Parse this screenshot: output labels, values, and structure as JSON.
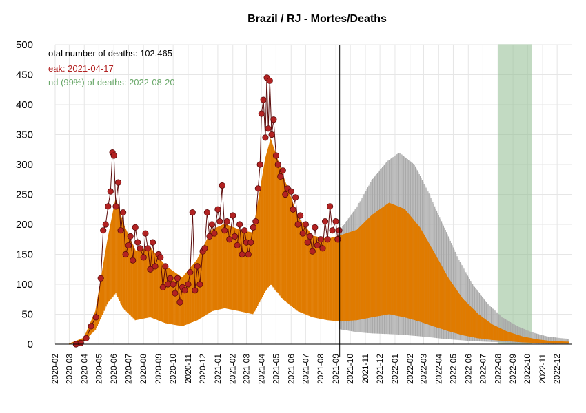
{
  "chart_data": {
    "type": "line",
    "title": "Brazil / RJ - Mortes/Deaths",
    "xlabel": "",
    "ylabel": "",
    "ylim": [
      0,
      500
    ],
    "y_ticks": [
      0,
      50,
      100,
      150,
      200,
      250,
      300,
      350,
      400,
      450,
      500
    ],
    "x_ticks": [
      "2020-02",
      "2020-03",
      "2020-04",
      "2020-05",
      "2020-06",
      "2020-07",
      "2020-08",
      "2020-09",
      "2020-10",
      "2020-11",
      "2020-12",
      "2021-01",
      "2021-02",
      "2021-03",
      "2021-04",
      "2021-05",
      "2021-06",
      "2021-07",
      "2021-08",
      "2021-09",
      "2021-10",
      "2021-11",
      "2021-12",
      "2022-01",
      "2022-02",
      "2022-03",
      "2022-04",
      "2022-05",
      "2022-06",
      "2022-07",
      "2022-08",
      "2022-09",
      "2022-10",
      "2022-11",
      "2022-12"
    ],
    "grid": true,
    "annotations": {
      "total": "otal number of deaths: 102.465",
      "peak": "eak: 2021-04-17",
      "end": "nd (99%) of deaths: 2022-08-20"
    },
    "current_date": "2021-09-09",
    "end_window": [
      "2022-08-01",
      "2022-10-10"
    ],
    "series": [
      {
        "role": "observed_daily_deaths",
        "points": [
          [
            "2020-03-15",
            0
          ],
          [
            "2020-03-25",
            2
          ],
          [
            "2020-04-05",
            10
          ],
          [
            "2020-04-15",
            30
          ],
          [
            "2020-04-25",
            45
          ],
          [
            "2020-05-05",
            110
          ],
          [
            "2020-05-10",
            190
          ],
          [
            "2020-05-15",
            200
          ],
          [
            "2020-05-20",
            230
          ],
          [
            "2020-05-25",
            255
          ],
          [
            "2020-05-29",
            320
          ],
          [
            "2020-06-01",
            315
          ],
          [
            "2020-06-05",
            230
          ],
          [
            "2020-06-10",
            270
          ],
          [
            "2020-06-15",
            190
          ],
          [
            "2020-06-20",
            220
          ],
          [
            "2020-06-25",
            150
          ],
          [
            "2020-07-01",
            165
          ],
          [
            "2020-07-05",
            180
          ],
          [
            "2020-07-10",
            140
          ],
          [
            "2020-07-15",
            195
          ],
          [
            "2020-07-20",
            170
          ],
          [
            "2020-07-25",
            160
          ],
          [
            "2020-08-01",
            145
          ],
          [
            "2020-08-05",
            185
          ],
          [
            "2020-08-10",
            160
          ],
          [
            "2020-08-15",
            125
          ],
          [
            "2020-08-20",
            170
          ],
          [
            "2020-08-25",
            130
          ],
          [
            "2020-09-01",
            150
          ],
          [
            "2020-09-05",
            145
          ],
          [
            "2020-09-10",
            95
          ],
          [
            "2020-09-15",
            130
          ],
          [
            "2020-09-20",
            100
          ],
          [
            "2020-09-25",
            110
          ],
          [
            "2020-10-01",
            100
          ],
          [
            "2020-10-05",
            85
          ],
          [
            "2020-10-10",
            110
          ],
          [
            "2020-10-15",
            70
          ],
          [
            "2020-10-20",
            95
          ],
          [
            "2020-10-25",
            90
          ],
          [
            "2020-11-01",
            100
          ],
          [
            "2020-11-05",
            120
          ],
          [
            "2020-11-10",
            220
          ],
          [
            "2020-11-15",
            90
          ],
          [
            "2020-11-20",
            130
          ],
          [
            "2020-11-25",
            100
          ],
          [
            "2020-12-01",
            155
          ],
          [
            "2020-12-05",
            160
          ],
          [
            "2020-12-10",
            220
          ],
          [
            "2020-12-15",
            180
          ],
          [
            "2020-12-20",
            200
          ],
          [
            "2020-12-25",
            185
          ],
          [
            "2021-01-01",
            225
          ],
          [
            "2021-01-05",
            205
          ],
          [
            "2021-01-10",
            265
          ],
          [
            "2021-01-15",
            190
          ],
          [
            "2021-01-20",
            205
          ],
          [
            "2021-01-25",
            175
          ],
          [
            "2021-02-01",
            215
          ],
          [
            "2021-02-05",
            180
          ],
          [
            "2021-02-10",
            165
          ],
          [
            "2021-02-15",
            200
          ],
          [
            "2021-02-20",
            150
          ],
          [
            "2021-02-25",
            190
          ],
          [
            "2021-03-01",
            170
          ],
          [
            "2021-03-05",
            150
          ],
          [
            "2021-03-10",
            170
          ],
          [
            "2021-03-15",
            195
          ],
          [
            "2021-03-20",
            205
          ],
          [
            "2021-03-25",
            260
          ],
          [
            "2021-03-29",
            300
          ],
          [
            "2021-04-01",
            385
          ],
          [
            "2021-04-05",
            408
          ],
          [
            "2021-04-09",
            345
          ],
          [
            "2021-04-12",
            445
          ],
          [
            "2021-04-15",
            360
          ],
          [
            "2021-04-18",
            440
          ],
          [
            "2021-04-22",
            350
          ],
          [
            "2021-04-26",
            375
          ],
          [
            "2021-05-01",
            315
          ],
          [
            "2021-05-05",
            300
          ],
          [
            "2021-05-10",
            280
          ],
          [
            "2021-05-15",
            290
          ],
          [
            "2021-05-20",
            250
          ],
          [
            "2021-05-25",
            260
          ],
          [
            "2021-06-01",
            255
          ],
          [
            "2021-06-05",
            225
          ],
          [
            "2021-06-10",
            245
          ],
          [
            "2021-06-15",
            200
          ],
          [
            "2021-06-20",
            215
          ],
          [
            "2021-06-25",
            185
          ],
          [
            "2021-07-01",
            200
          ],
          [
            "2021-07-05",
            170
          ],
          [
            "2021-07-10",
            180
          ],
          [
            "2021-07-15",
            155
          ],
          [
            "2021-07-20",
            195
          ],
          [
            "2021-07-25",
            165
          ],
          [
            "2021-08-01",
            175
          ],
          [
            "2021-08-05",
            160
          ],
          [
            "2021-08-10",
            205
          ],
          [
            "2021-08-15",
            175
          ],
          [
            "2021-08-20",
            230
          ],
          [
            "2021-08-25",
            190
          ],
          [
            "2021-09-01",
            205
          ],
          [
            "2021-09-05",
            175
          ],
          [
            "2021-09-08",
            190
          ]
        ]
      },
      {
        "role": "fitted_curve_upper",
        "points": [
          [
            "2020-03-01",
            0
          ],
          [
            "2020-04-01",
            10
          ],
          [
            "2020-04-25",
            55
          ],
          [
            "2020-05-20",
            175
          ],
          [
            "2020-06-05",
            240
          ],
          [
            "2020-06-20",
            200
          ],
          [
            "2020-07-15",
            155
          ],
          [
            "2020-08-15",
            160
          ],
          [
            "2020-09-15",
            130
          ],
          [
            "2020-10-20",
            110
          ],
          [
            "2020-11-20",
            140
          ],
          [
            "2020-12-20",
            190
          ],
          [
            "2021-01-15",
            200
          ],
          [
            "2021-02-15",
            190
          ],
          [
            "2021-03-15",
            185
          ],
          [
            "2021-04-10",
            310
          ],
          [
            "2021-04-20",
            340
          ],
          [
            "2021-05-15",
            280
          ],
          [
            "2021-06-15",
            210
          ],
          [
            "2021-07-15",
            180
          ],
          [
            "2021-08-15",
            175
          ],
          [
            "2021-09-08",
            180
          ],
          [
            "2021-10-15",
            190
          ],
          [
            "2021-11-15",
            215
          ],
          [
            "2021-12-20",
            235
          ],
          [
            "2022-01-20",
            225
          ],
          [
            "2022-02-20",
            195
          ],
          [
            "2022-03-20",
            155
          ],
          [
            "2022-04-20",
            110
          ],
          [
            "2022-05-20",
            75
          ],
          [
            "2022-06-20",
            50
          ],
          [
            "2022-07-20",
            32
          ],
          [
            "2022-08-20",
            20
          ],
          [
            "2022-09-20",
            12
          ],
          [
            "2022-10-20",
            7
          ],
          [
            "2022-11-20",
            4
          ],
          [
            "2022-12-25",
            3
          ]
        ]
      },
      {
        "role": "fitted_curve_lower",
        "points": [
          [
            "2020-03-01",
            0
          ],
          [
            "2020-04-01",
            5
          ],
          [
            "2020-04-25",
            25
          ],
          [
            "2020-05-20",
            70
          ],
          [
            "2020-06-05",
            85
          ],
          [
            "2020-06-20",
            60
          ],
          [
            "2020-07-15",
            40
          ],
          [
            "2020-08-15",
            45
          ],
          [
            "2020-09-15",
            35
          ],
          [
            "2020-10-20",
            30
          ],
          [
            "2020-11-20",
            40
          ],
          [
            "2020-12-20",
            55
          ],
          [
            "2021-01-15",
            60
          ],
          [
            "2021-02-15",
            55
          ],
          [
            "2021-03-15",
            50
          ],
          [
            "2021-04-10",
            90
          ],
          [
            "2021-04-20",
            100
          ],
          [
            "2021-05-15",
            75
          ],
          [
            "2021-06-15",
            55
          ],
          [
            "2021-07-15",
            45
          ],
          [
            "2021-08-15",
            40
          ],
          [
            "2021-09-08",
            38
          ],
          [
            "2021-10-15",
            40
          ],
          [
            "2021-11-15",
            45
          ],
          [
            "2021-12-20",
            50
          ],
          [
            "2022-01-20",
            45
          ],
          [
            "2022-02-20",
            38
          ],
          [
            "2022-03-20",
            30
          ],
          [
            "2022-04-20",
            22
          ],
          [
            "2022-05-20",
            15
          ],
          [
            "2022-06-20",
            10
          ],
          [
            "2022-07-20",
            7
          ],
          [
            "2022-08-20",
            5
          ],
          [
            "2022-09-20",
            3
          ],
          [
            "2022-10-20",
            2
          ],
          [
            "2022-11-20",
            1
          ],
          [
            "2022-12-25",
            1
          ]
        ]
      },
      {
        "role": "projection_upper_bound",
        "points": [
          [
            "2021-09-09",
            190
          ],
          [
            "2021-10-15",
            230
          ],
          [
            "2021-11-15",
            275
          ],
          [
            "2021-12-15",
            305
          ],
          [
            "2022-01-10",
            320
          ],
          [
            "2022-02-10",
            300
          ],
          [
            "2022-03-10",
            255
          ],
          [
            "2022-04-10",
            200
          ],
          [
            "2022-05-10",
            145
          ],
          [
            "2022-06-10",
            100
          ],
          [
            "2022-07-10",
            68
          ],
          [
            "2022-08-10",
            45
          ],
          [
            "2022-09-10",
            30
          ],
          [
            "2022-10-10",
            20
          ],
          [
            "2022-11-10",
            13
          ],
          [
            "2022-12-10",
            10
          ],
          [
            "2022-12-25",
            9
          ]
        ]
      },
      {
        "role": "projection_lower_bound",
        "points": [
          [
            "2021-09-09",
            25
          ],
          [
            "2021-10-15",
            20
          ],
          [
            "2021-11-15",
            18
          ],
          [
            "2021-12-15",
            17
          ],
          [
            "2022-01-10",
            16
          ],
          [
            "2022-02-10",
            14
          ],
          [
            "2022-03-10",
            12
          ],
          [
            "2022-04-10",
            9
          ],
          [
            "2022-05-10",
            7
          ],
          [
            "2022-06-10",
            5
          ],
          [
            "2022-07-10",
            4
          ],
          [
            "2022-08-10",
            3
          ],
          [
            "2022-09-10",
            2
          ],
          [
            "2022-10-10",
            1
          ],
          [
            "2022-12-25",
            0
          ]
        ]
      }
    ]
  },
  "colors": {
    "observed_point": "#b22222",
    "observed_line": "#5a0a0a",
    "fit": "#e07b00",
    "projection": "#a9a9a9",
    "end_window": "#8fbc8f",
    "peak_text": "#b22222",
    "end_text": "#6aa86a",
    "total_text": "#000000",
    "grid": "#e6e6e6"
  }
}
